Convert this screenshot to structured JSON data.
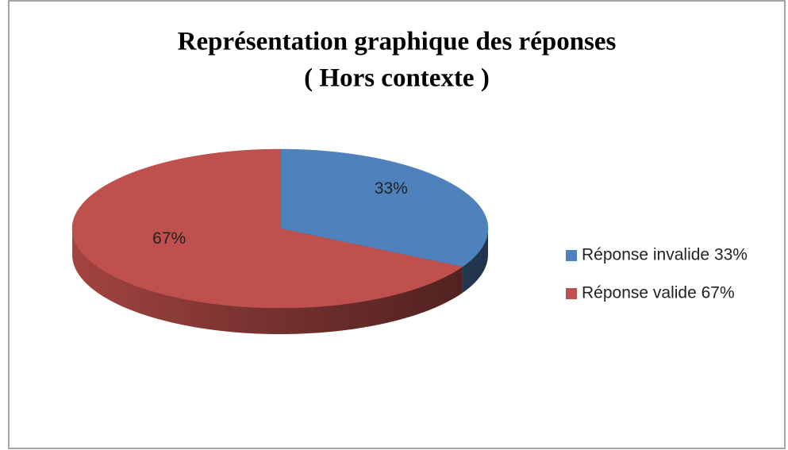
{
  "chart_data": {
    "type": "pie3d",
    "title": [
      "Représentation graphique des réponses",
      "( Hors contexte )"
    ],
    "categories": [
      "Réponse invalide 33%",
      "Réponse valide 67%"
    ],
    "values": [
      33,
      67
    ],
    "value_labels": [
      "33%",
      "67%"
    ],
    "colors": [
      "#4f81bd",
      "#c0504d"
    ],
    "legend": "right"
  }
}
